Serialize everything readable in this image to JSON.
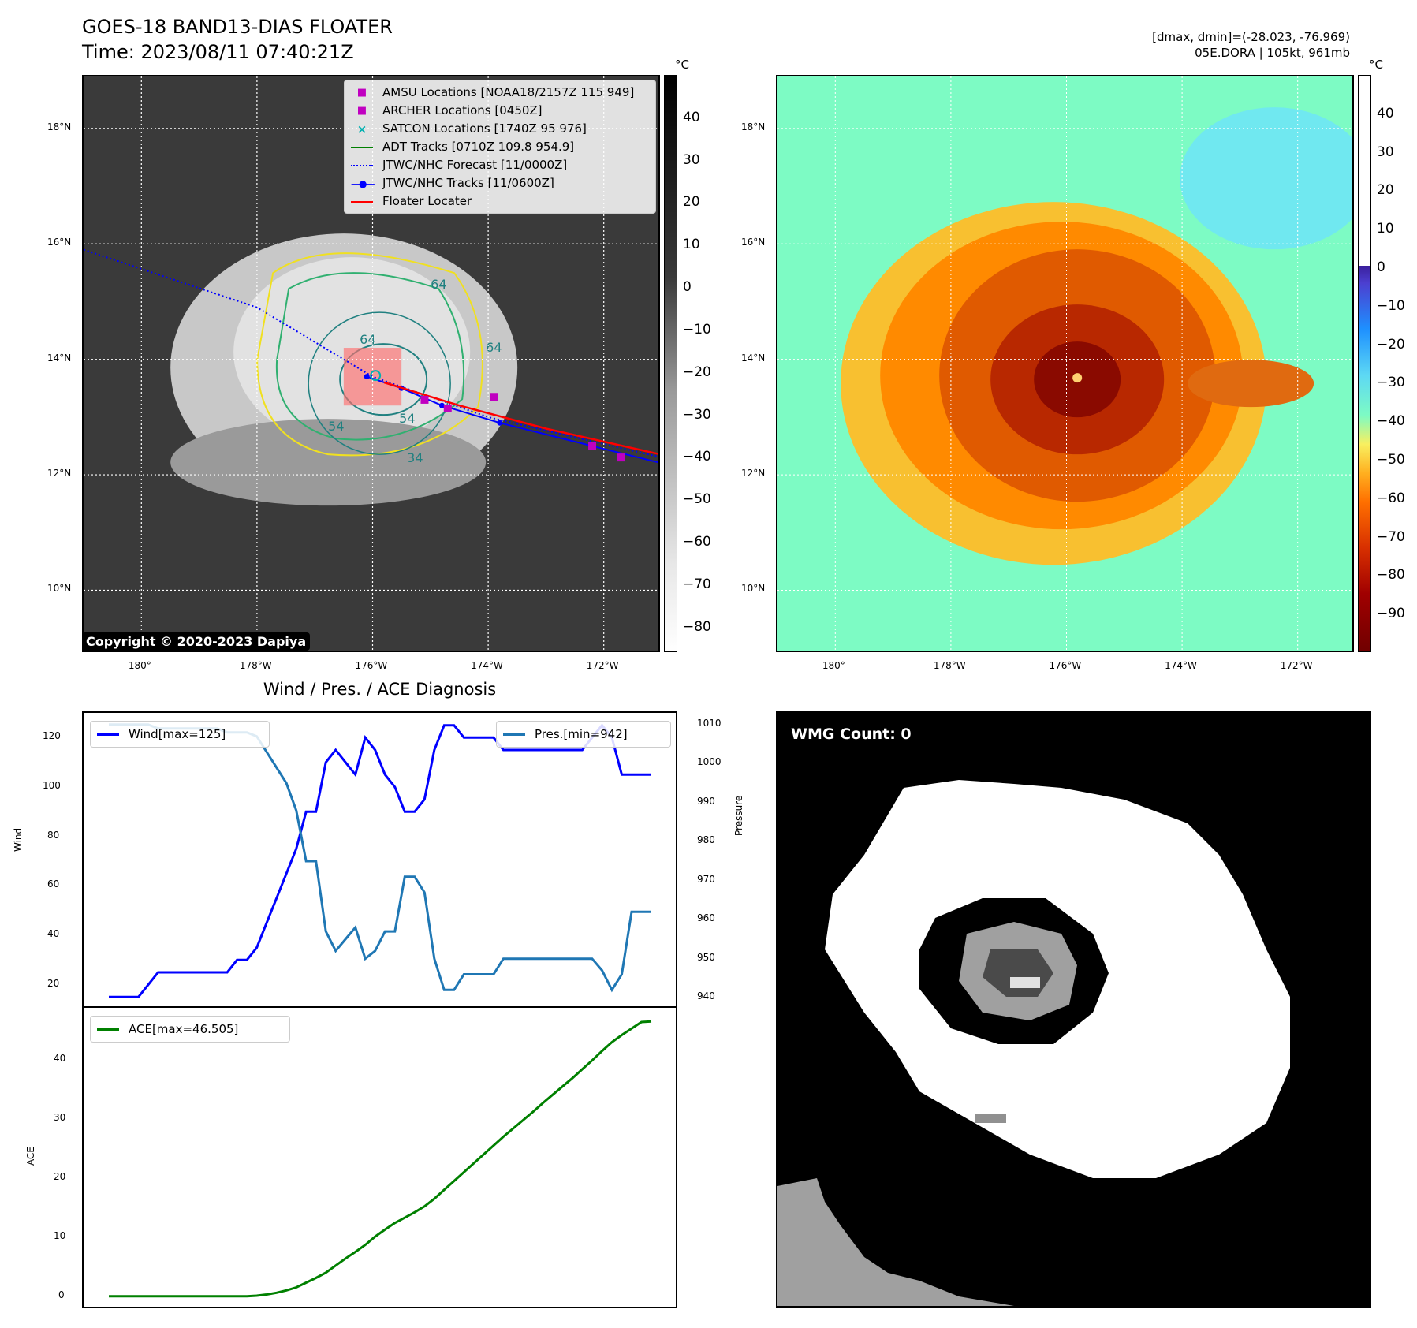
{
  "header": {
    "title": "GOES-18 BAND13-DIAS FLOATER",
    "time": "Time: 2023/08/11 07:40:21Z",
    "dmax_dmin": "[dmax, dmin]=(-28.023, -76.969)",
    "storm": "05E.DORA | 105kt, 961mb"
  },
  "copyright": "Copyright © 2020-2023 Dapiya",
  "wmg": {
    "label": "WMG Count: 0"
  },
  "colors": {
    "wind": "#0000ff",
    "pressure": "#1f77b4",
    "ace": "#008000",
    "floater": "#ff0000",
    "amsu": "#c000c0",
    "satcon": "#00b0b0",
    "adt": "#008000",
    "forecast": "#0000ff"
  },
  "chart_data": [
    {
      "type": "map",
      "name": "ir_panel",
      "lat_labels": [
        "18°N",
        "16°N",
        "14°N",
        "12°N",
        "10°N"
      ],
      "lon_labels": [
        "180°",
        "178°W",
        "176°W",
        "174°W",
        "172°W"
      ],
      "lat_values": [
        18,
        16,
        14,
        12,
        10
      ],
      "lon_values": [
        180,
        178,
        176,
        174,
        172
      ],
      "lat_range": [
        8.9,
        18.9
      ],
      "lon_range": [
        181.0,
        171.0
      ],
      "colorbar": {
        "unit": "°C",
        "ticks": [
          40,
          30,
          20,
          10,
          0,
          -10,
          -20,
          -30,
          -40,
          -50,
          -60,
          -70,
          -80
        ],
        "tick_labels": [
          "40",
          "30",
          "20",
          "10",
          "0",
          "−10",
          "−20",
          "−30",
          "−40",
          "−50",
          "−60",
          "−70",
          "−80"
        ],
        "range": [
          50,
          -86
        ]
      },
      "legend": [
        {
          "label": "AMSU Locations [NOAA18/2157Z 115 949]",
          "icon": "square-marker"
        },
        {
          "label": "ARCHER Locations [0450Z]",
          "icon": "square-marker"
        },
        {
          "label": "SATCON Locations [1740Z 95 976]",
          "icon": "x-marker"
        },
        {
          "label": "ADT Tracks [0710Z 109.8 954.9]",
          "icon": "line"
        },
        {
          "label": "JTWC/NHC Forecast [11/0000Z]",
          "icon": "dotted-line"
        },
        {
          "label": "JTWC/NHC Tracks [11/0600Z]",
          "icon": "dot-line"
        },
        {
          "label": "Floater Locater",
          "icon": "line"
        }
      ],
      "contour_labels": [
        "64",
        "64",
        "64",
        "54",
        "54",
        "34"
      ],
      "forecast_track": [
        [
          181.0,
          15.9
        ],
        [
          178.0,
          14.9
        ],
        [
          176.0,
          13.7
        ],
        [
          174.0,
          13.0
        ],
        [
          171.0,
          12.3
        ]
      ],
      "best_track": [
        [
          176.1,
          13.7
        ],
        [
          175.5,
          13.5
        ],
        [
          174.8,
          13.2
        ],
        [
          173.8,
          12.9
        ],
        [
          172.2,
          12.5
        ],
        [
          171.0,
          12.2
        ]
      ],
      "floater_track": [
        [
          175.8,
          13.6
        ],
        [
          174.5,
          13.2
        ],
        [
          173.0,
          12.8
        ],
        [
          171.0,
          12.35
        ]
      ],
      "amsu_points": [
        [
          175.1,
          13.3
        ],
        [
          174.7,
          13.15
        ],
        [
          173.9,
          13.35
        ],
        [
          172.2,
          12.5
        ],
        [
          171.7,
          12.3
        ]
      ],
      "center": [
        175.95,
        13.72
      ],
      "floater_box": {
        "lon": [
          176.5,
          175.5
        ],
        "lat": [
          13.2,
          14.2
        ]
      }
    },
    {
      "type": "map",
      "name": "enhanced_panel",
      "lat_labels": [
        "18°N",
        "16°N",
        "14°N",
        "12°N",
        "10°N"
      ],
      "lon_labels": [
        "180°",
        "178°W",
        "176°W",
        "174°W",
        "172°W"
      ],
      "colorbar": {
        "unit": "°C",
        "ticks": [
          40,
          30,
          20,
          10,
          0,
          -10,
          -20,
          -30,
          -40,
          -50,
          -60,
          -70,
          -80,
          -90
        ],
        "tick_labels": [
          "40",
          "30",
          "20",
          "10",
          "0",
          "−10",
          "−20",
          "−30",
          "−40",
          "−50",
          "−60",
          "−70",
          "−80",
          "−90"
        ],
        "range": [
          50,
          -100
        ]
      }
    },
    {
      "type": "line",
      "name": "wind_pressure",
      "title": "Wind / Pres. / ACE Diagnosis",
      "ylabel": "Wind",
      "y2label": "Pressure",
      "ylim": [
        10,
        130
      ],
      "y2lim": [
        937,
        1013
      ],
      "yticks": [
        20,
        40,
        60,
        80,
        100,
        120
      ],
      "y2ticks": [
        940,
        950,
        960,
        970,
        980,
        990,
        1000,
        1010
      ],
      "series": [
        {
          "name": "Wind[max=125]",
          "values": [
            15,
            15,
            15,
            15,
            20,
            25,
            25,
            25,
            25,
            25,
            25,
            25,
            25,
            30,
            30,
            35,
            45,
            55,
            65,
            75,
            90,
            90,
            110,
            115,
            110,
            105,
            120,
            115,
            105,
            100,
            90,
            90,
            95,
            115,
            125,
            125,
            120,
            120,
            120,
            120,
            115,
            115,
            115,
            115,
            115,
            115,
            115,
            115,
            115,
            120,
            125,
            120,
            105,
            105,
            105,
            105
          ]
        },
        {
          "name": "Pres.[min=942]",
          "values": [
            1010,
            1010,
            1010,
            1010,
            1010,
            1009,
            1009,
            1009,
            1009,
            1009,
            1009,
            1009,
            1008,
            1008,
            1008,
            1007,
            1003,
            999,
            995,
            988,
            975,
            975,
            957,
            952,
            955,
            958,
            950,
            952,
            957,
            957,
            971,
            971,
            967,
            950,
            942,
            942,
            946,
            946,
            946,
            946,
            950,
            950,
            950,
            950,
            950,
            950,
            950,
            950,
            950,
            950,
            947,
            942,
            946,
            962,
            962,
            962
          ]
        }
      ]
    },
    {
      "type": "line",
      "name": "ace",
      "ylabel": "ACE",
      "ylim": [
        -2.3,
        48.8
      ],
      "yticks": [
        0,
        10,
        20,
        30,
        40
      ],
      "series": [
        {
          "name": "ACE[max=46.505]",
          "values": [
            0,
            0,
            0,
            0,
            0,
            0,
            0,
            0,
            0,
            0,
            0,
            0,
            0,
            0,
            0,
            0.1,
            0.3,
            0.6,
            1.0,
            1.5,
            2.3,
            3.1,
            4.0,
            5.2,
            6.4,
            7.5,
            8.7,
            10.1,
            11.3,
            12.4,
            13.3,
            14.2,
            15.2,
            16.5,
            18.0,
            19.5,
            21.0,
            22.5,
            24.0,
            25.5,
            27.0,
            28.4,
            29.8,
            31.2,
            32.7,
            34.1,
            35.5,
            36.9,
            38.4,
            39.9,
            41.5,
            43.0,
            44.2,
            45.3,
            46.4,
            46.505
          ]
        }
      ]
    }
  ]
}
